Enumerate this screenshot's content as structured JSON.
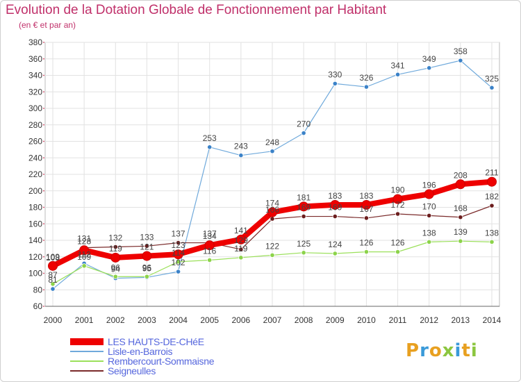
{
  "header": {
    "title": "Evolution de la Dotation Globale de Fonctionnement par Habitant",
    "subtitle": "(en € et par an)"
  },
  "logo": {
    "text": "Proxiti",
    "letters": [
      {
        "ch": "P",
        "color": "#e8a020"
      },
      {
        "ch": "r",
        "color": "#3a9ad9"
      },
      {
        "ch": "o",
        "color": "#e8a020"
      },
      {
        "ch": "x",
        "color": "#8cc63f"
      },
      {
        "ch": "i",
        "color": "#3a9ad9"
      },
      {
        "ch": "t",
        "color": "#e8a020"
      },
      {
        "ch": "i",
        "color": "#8cc63f"
      }
    ]
  },
  "chart_data": {
    "type": "line",
    "title": "Evolution de la Dotation Globale de Fonctionnement par Habitant",
    "subtitle": "(en € et par an)",
    "xlabel": "",
    "ylabel": "",
    "ylim": [
      60,
      380
    ],
    "yticks": [
      60,
      80,
      100,
      120,
      140,
      160,
      180,
      200,
      220,
      240,
      260,
      280,
      300,
      320,
      340,
      360,
      380
    ],
    "x": [
      "2000",
      "2001",
      "2002",
      "2003",
      "2004",
      "2005",
      "2006",
      "2007",
      "2008",
      "2009",
      "2010",
      "2011",
      "2012",
      "2013",
      "2014"
    ],
    "grid": true,
    "legend_position": "bottom-left",
    "series": [
      {
        "name": "LES HAUTS-DE-CHéE",
        "color": "#ee0000",
        "width": 8,
        "marker": "#ee0000",
        "values": [
          109,
          128,
          119,
          121,
          123,
          134,
          141,
          174,
          181,
          183,
          183,
          190,
          196,
          208,
          211
        ]
      },
      {
        "name": "Lisle-en-Barrois",
        "color": "#6fa9db",
        "width": 1.2,
        "marker": "#3b82c8",
        "values": [
          81,
          112,
          94,
          95,
          102,
          253,
          243,
          248,
          270,
          330,
          326,
          341,
          349,
          358,
          325
        ]
      },
      {
        "name": "Rembercourt-Sommaisne",
        "color": "#9be05a",
        "width": 1.2,
        "marker": "#8cd34a",
        "values": [
          87,
          109,
          96,
          96,
          114,
          116,
          119,
          122,
          125,
          124,
          126,
          126,
          138,
          139,
          138
        ]
      },
      {
        "name": "Seigneulles",
        "color": "#7a2a2a",
        "width": 1.2,
        "marker": "#6b1d1d",
        "values": [
          108,
          131,
          132,
          133,
          137,
          137,
          129,
          166,
          169,
          169,
          167,
          172,
          170,
          168,
          182
        ]
      }
    ]
  }
}
